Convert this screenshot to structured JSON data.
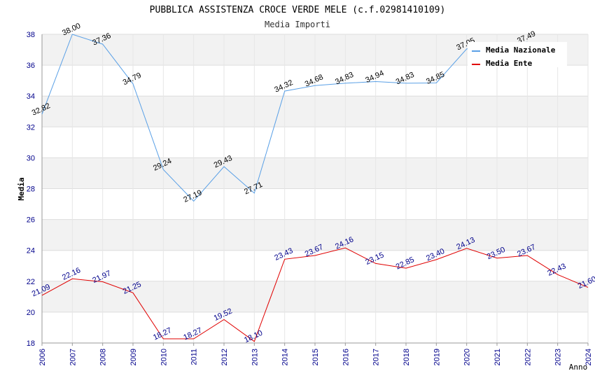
{
  "chart_data": {
    "type": "line",
    "title": "PUBBLICA ASSISTENZA CROCE VERDE MELE (c.f.02981410109)",
    "subtitle": "Media Importi",
    "xlabel": "Anno",
    "ylabel": "Media",
    "x": [
      "2006",
      "2007",
      "2008",
      "2009",
      "2010",
      "2011",
      "2012",
      "2013",
      "2014",
      "2015",
      "2016",
      "2017",
      "2018",
      "2019",
      "2020",
      "2021",
      "2022",
      "2023",
      "2024"
    ],
    "ylim": [
      18,
      38
    ],
    "yticks": [
      "18",
      "20",
      "22",
      "24",
      "26",
      "28",
      "30",
      "32",
      "34",
      "36",
      "38"
    ],
    "grid": true,
    "legend_position": "top-right",
    "series": [
      {
        "name": "Media Nazionale",
        "color": "#5aa0e6",
        "values": [
          32.82,
          38.0,
          37.36,
          34.79,
          29.24,
          27.19,
          29.43,
          27.71,
          34.32,
          34.68,
          34.83,
          34.94,
          34.83,
          34.85,
          37.05,
          null,
          37.49,
          null,
          null
        ],
        "labels": [
          "32.82",
          "38.00",
          "37.36",
          "34.79",
          "29.24",
          "27.19",
          "29.43",
          "27.71",
          "34.32",
          "34.68",
          "34.83",
          "34.94",
          "34.83",
          "34.85",
          "37.05",
          "",
          "37.49",
          "",
          ""
        ]
      },
      {
        "name": "Media Ente",
        "color": "#e00000",
        "values": [
          21.09,
          22.16,
          21.97,
          21.25,
          18.27,
          18.27,
          19.52,
          18.1,
          23.43,
          23.67,
          24.16,
          23.15,
          22.85,
          23.4,
          24.13,
          23.5,
          23.67,
          22.43,
          21.6
        ],
        "labels": [
          "21.09",
          "22.16",
          "21.97",
          "21.25",
          "18.27",
          "18.27",
          "19.52",
          "18.10",
          "23.43",
          "23.67",
          "24.16",
          "23.15",
          "22.85",
          "23.40",
          "24.13",
          "23.50",
          "23.67",
          "22.43",
          "21.60"
        ]
      }
    ]
  }
}
